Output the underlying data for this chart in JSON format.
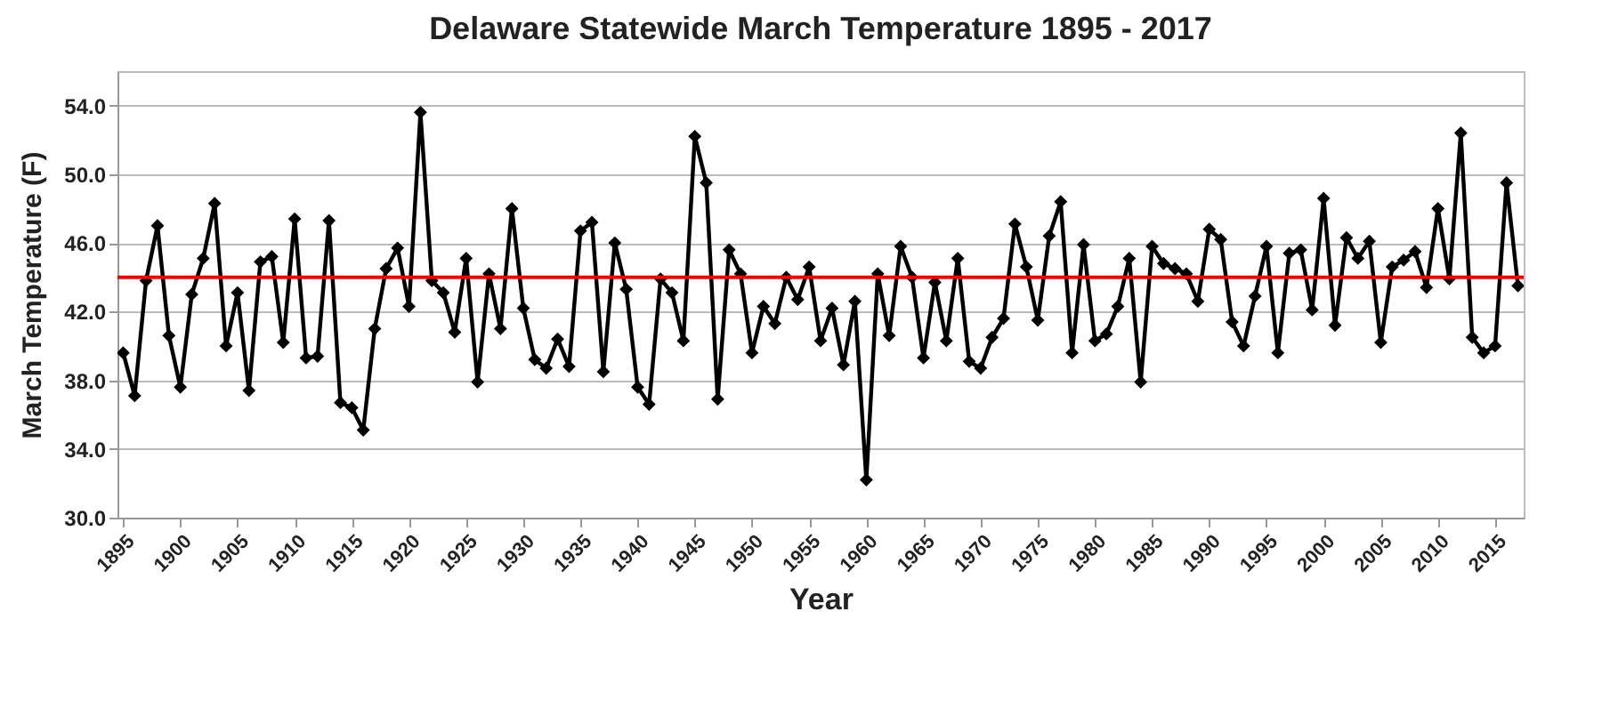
{
  "chart_data": {
    "type": "line",
    "title": "Delaware Statewide March Temperature 1895 - 2017",
    "xlabel": "Year",
    "ylabel": "March Temperature (F)",
    "x": [
      1895,
      1896,
      1897,
      1898,
      1899,
      1900,
      1901,
      1902,
      1903,
      1904,
      1905,
      1906,
      1907,
      1908,
      1909,
      1910,
      1911,
      1912,
      1913,
      1914,
      1915,
      1916,
      1917,
      1918,
      1919,
      1920,
      1921,
      1922,
      1923,
      1924,
      1925,
      1926,
      1927,
      1928,
      1929,
      1930,
      1931,
      1932,
      1933,
      1934,
      1935,
      1936,
      1937,
      1938,
      1939,
      1940,
      1941,
      1942,
      1943,
      1944,
      1945,
      1946,
      1947,
      1948,
      1949,
      1950,
      1951,
      1952,
      1953,
      1954,
      1955,
      1956,
      1957,
      1958,
      1959,
      1960,
      1961,
      1962,
      1963,
      1964,
      1965,
      1966,
      1967,
      1968,
      1969,
      1970,
      1971,
      1972,
      1973,
      1974,
      1975,
      1976,
      1977,
      1978,
      1979,
      1980,
      1981,
      1982,
      1983,
      1984,
      1985,
      1986,
      1987,
      1988,
      1989,
      1990,
      1991,
      1992,
      1993,
      1994,
      1995,
      1996,
      1997,
      1998,
      1999,
      2000,
      2001,
      2002,
      2003,
      2004,
      2005,
      2006,
      2007,
      2008,
      2009,
      2010,
      2011,
      2012,
      2013,
      2014,
      2015,
      2016,
      2017
    ],
    "series": [
      {
        "color": "#000000",
        "values": [
          39.6,
          37.1,
          43.8,
          47.0,
          40.6,
          37.6,
          43.0,
          45.1,
          48.3,
          40.0,
          43.1,
          37.4,
          44.9,
          45.2,
          40.2,
          47.4,
          39.3,
          39.4,
          47.3,
          36.7,
          36.4,
          35.1,
          41.0,
          44.5,
          45.7,
          42.3,
          53.6,
          43.8,
          43.1,
          40.8,
          45.1,
          37.9,
          44.2,
          41.0,
          48.0,
          42.2,
          39.2,
          38.7,
          40.4,
          38.8,
          46.7,
          47.2,
          38.5,
          46.0,
          43.3,
          37.6,
          36.6,
          43.9,
          43.1,
          40.3,
          52.2,
          49.5,
          36.9,
          45.6,
          44.2,
          39.6,
          42.3,
          41.3,
          44.0,
          42.7,
          44.6,
          40.3,
          42.2,
          38.9,
          42.6,
          32.2,
          44.2,
          40.6,
          45.8,
          44.0,
          39.3,
          43.7,
          40.3,
          45.1,
          39.1,
          38.7,
          40.5,
          41.6,
          47.1,
          44.6,
          41.5,
          46.4,
          48.4,
          39.6,
          45.9,
          40.3,
          40.7,
          42.3,
          45.1,
          37.9,
          45.8,
          44.8,
          44.5,
          44.2,
          42.6,
          46.8,
          46.2,
          41.4,
          40.0,
          42.9,
          45.8,
          39.6,
          45.4,
          45.6,
          42.1,
          48.6,
          41.2,
          46.3,
          45.1,
          46.1,
          40.2,
          44.6,
          45.0,
          45.5,
          43.4,
          48.0,
          43.9,
          52.4,
          40.5,
          39.6,
          40.0,
          49.5,
          43.5
        ]
      }
    ],
    "xlim": [
      1894.5,
      2017.5
    ],
    "xticks": [
      1895,
      1900,
      1905,
      1910,
      1915,
      1920,
      1925,
      1930,
      1935,
      1940,
      1945,
      1950,
      1955,
      1960,
      1965,
      1970,
      1975,
      1980,
      1985,
      1990,
      1995,
      2000,
      2005,
      2010,
      2015
    ],
    "ylim": [
      30,
      56
    ],
    "yticks": [
      {
        "value": 30,
        "label": "30.0"
      },
      {
        "value": 34,
        "label": "34.0"
      },
      {
        "value": 38,
        "label": "38.0"
      },
      {
        "value": 42,
        "label": "42.0"
      },
      {
        "value": 46,
        "label": "46.0"
      },
      {
        "value": 50,
        "label": "50.0"
      },
      {
        "value": 54,
        "label": "54.0"
      }
    ],
    "ref_lines": [
      {
        "axis": "y",
        "value": 44.0,
        "color": "#ff0000"
      }
    ],
    "grid": "y",
    "marker": "diamond",
    "line_style": "solid"
  }
}
